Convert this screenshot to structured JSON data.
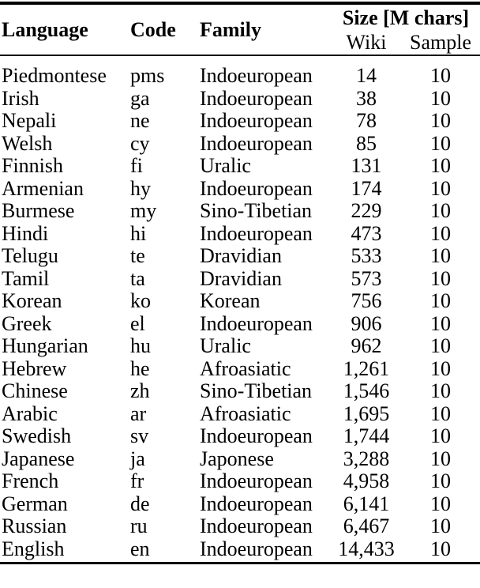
{
  "page": {
    "background_color": "#ffffff",
    "text_color": "#000000",
    "rule_color": "#000000"
  },
  "table": {
    "group_header": "Size [M chars]",
    "columns": {
      "language": "Language",
      "code": "Code",
      "family": "Family",
      "wiki": "Wiki",
      "sample": "Sample"
    },
    "rows": [
      {
        "language": "Piedmontese",
        "code": "pms",
        "family": "Indoeuropean",
        "wiki": "14",
        "sample": "10"
      },
      {
        "language": "Irish",
        "code": "ga",
        "family": "Indoeuropean",
        "wiki": "38",
        "sample": "10"
      },
      {
        "language": "Nepali",
        "code": "ne",
        "family": "Indoeuropean",
        "wiki": "78",
        "sample": "10"
      },
      {
        "language": "Welsh",
        "code": "cy",
        "family": "Indoeuropean",
        "wiki": "85",
        "sample": "10"
      },
      {
        "language": "Finnish",
        "code": "fi",
        "family": "Uralic",
        "wiki": "131",
        "sample": "10"
      },
      {
        "language": "Armenian",
        "code": "hy",
        "family": "Indoeuropean",
        "wiki": "174",
        "sample": "10"
      },
      {
        "language": "Burmese",
        "code": "my",
        "family": "Sino-Tibetian",
        "wiki": "229",
        "sample": "10"
      },
      {
        "language": "Hindi",
        "code": "hi",
        "family": "Indoeuropean",
        "wiki": "473",
        "sample": "10"
      },
      {
        "language": "Telugu",
        "code": "te",
        "family": "Dravidian",
        "wiki": "533",
        "sample": "10"
      },
      {
        "language": "Tamil",
        "code": "ta",
        "family": "Dravidian",
        "wiki": "573",
        "sample": "10"
      },
      {
        "language": "Korean",
        "code": "ko",
        "family": "Korean",
        "wiki": "756",
        "sample": "10"
      },
      {
        "language": "Greek",
        "code": "el",
        "family": "Indoeuropean",
        "wiki": "906",
        "sample": "10"
      },
      {
        "language": "Hungarian",
        "code": "hu",
        "family": "Uralic",
        "wiki": "962",
        "sample": "10"
      },
      {
        "language": "Hebrew",
        "code": "he",
        "family": "Afroasiatic",
        "wiki": "1,261",
        "sample": "10"
      },
      {
        "language": "Chinese",
        "code": "zh",
        "family": "Sino-Tibetian",
        "wiki": "1,546",
        "sample": "10"
      },
      {
        "language": "Arabic",
        "code": "ar",
        "family": "Afroasiatic",
        "wiki": "1,695",
        "sample": "10"
      },
      {
        "language": "Swedish",
        "code": "sv",
        "family": "Indoeuropean",
        "wiki": "1,744",
        "sample": "10"
      },
      {
        "language": "Japanese",
        "code": "ja",
        "family": "Japonese",
        "wiki": "3,288",
        "sample": "10"
      },
      {
        "language": "French",
        "code": "fr",
        "family": "Indoeuropean",
        "wiki": "4,958",
        "sample": "10"
      },
      {
        "language": "German",
        "code": "de",
        "family": "Indoeuropean",
        "wiki": "6,141",
        "sample": "10"
      },
      {
        "language": "Russian",
        "code": "ru",
        "family": "Indoeuropean",
        "wiki": "6,467",
        "sample": "10"
      },
      {
        "language": "English",
        "code": "en",
        "family": "Indoeuropean",
        "wiki": "14,433",
        "sample": "10"
      }
    ]
  }
}
